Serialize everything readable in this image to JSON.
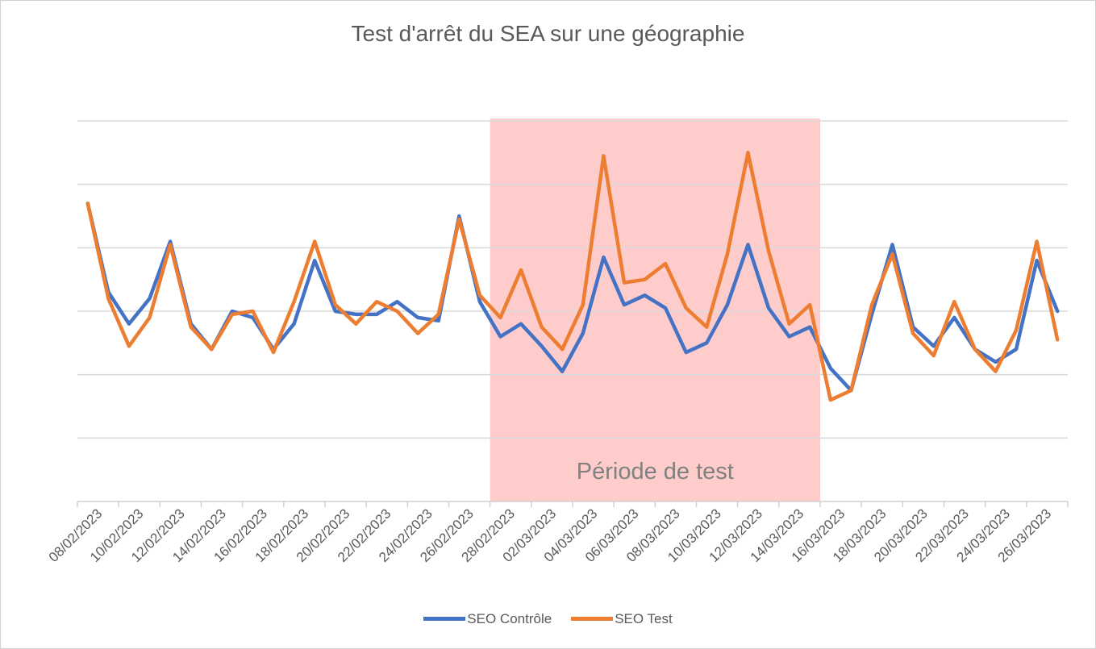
{
  "chart_data": {
    "type": "line",
    "title": "Test d'arrêt du SEA sur une géographie",
    "xlabel": "",
    "ylabel": "",
    "grid": true,
    "legend_position": "bottom",
    "x_tick_labels": [
      "08/02/2023",
      "10/02/2023",
      "12/02/2023",
      "14/02/2023",
      "16/02/2023",
      "18/02/2023",
      "20/02/2023",
      "22/02/2023",
      "24/02/2023",
      "26/02/2023",
      "28/02/2023",
      "02/03/2023",
      "04/03/2023",
      "06/03/2023",
      "08/03/2023",
      "10/03/2023",
      "12/03/2023",
      "14/03/2023",
      "16/03/2023",
      "18/03/2023",
      "20/03/2023",
      "22/03/2023",
      "24/03/2023",
      "26/03/2023"
    ],
    "x": [
      "08/02/2023",
      "09/02/2023",
      "10/02/2023",
      "11/02/2023",
      "12/02/2023",
      "13/02/2023",
      "14/02/2023",
      "15/02/2023",
      "16/02/2023",
      "17/02/2023",
      "18/02/2023",
      "19/02/2023",
      "20/02/2023",
      "21/02/2023",
      "22/02/2023",
      "23/02/2023",
      "24/02/2023",
      "25/02/2023",
      "26/02/2023",
      "27/02/2023",
      "28/02/2023",
      "01/03/2023",
      "02/03/2023",
      "03/03/2023",
      "04/03/2023",
      "05/03/2023",
      "06/03/2023",
      "07/03/2023",
      "08/03/2023",
      "09/03/2023",
      "10/03/2023",
      "11/03/2023",
      "12/03/2023",
      "13/03/2023",
      "14/03/2023",
      "15/03/2023",
      "16/03/2023",
      "17/03/2023",
      "18/03/2023",
      "19/03/2023",
      "20/03/2023",
      "21/03/2023",
      "22/03/2023",
      "23/03/2023",
      "24/03/2023",
      "25/03/2023",
      "26/03/2023",
      "27/03/2023"
    ],
    "ylim": [
      0,
      6
    ],
    "y_ticks": [
      0,
      1,
      2,
      3,
      4,
      5,
      6
    ],
    "series": [
      {
        "name": "SEO Contrôle",
        "color": "#4472C4",
        "values": [
          4.7,
          3.3,
          2.8,
          3.2,
          4.1,
          2.8,
          2.4,
          3.0,
          2.9,
          2.4,
          2.8,
          3.8,
          3.0,
          2.95,
          2.95,
          3.15,
          2.9,
          2.85,
          4.5,
          3.15,
          2.6,
          2.8,
          2.45,
          2.05,
          2.65,
          3.85,
          3.1,
          3.25,
          3.05,
          2.35,
          2.5,
          3.1,
          4.05,
          3.05,
          2.6,
          2.75,
          2.1,
          1.75,
          2.95,
          4.05,
          2.75,
          2.45,
          2.9,
          2.4,
          2.2,
          2.4,
          3.8,
          3.0
        ]
      },
      {
        "name": "SEO Test",
        "color": "#ED7D31",
        "values": [
          4.7,
          3.2,
          2.45,
          2.9,
          4.05,
          2.75,
          2.4,
          2.95,
          3.0,
          2.35,
          3.15,
          4.1,
          3.1,
          2.8,
          3.15,
          3.0,
          2.65,
          2.95,
          4.45,
          3.25,
          2.9,
          3.65,
          2.75,
          2.4,
          3.1,
          5.45,
          3.45,
          3.5,
          3.75,
          3.05,
          2.75,
          3.9,
          5.5,
          3.95,
          2.8,
          3.1,
          1.6,
          1.75,
          3.1,
          3.9,
          2.65,
          2.3,
          3.15,
          2.4,
          2.05,
          2.7,
          4.1,
          2.55
        ]
      }
    ],
    "annotations": [
      {
        "type": "shaded-band",
        "label": "Période de test",
        "from": "28/02/2023",
        "to": "16/03/2023",
        "color": "#FFCCCC"
      }
    ]
  }
}
